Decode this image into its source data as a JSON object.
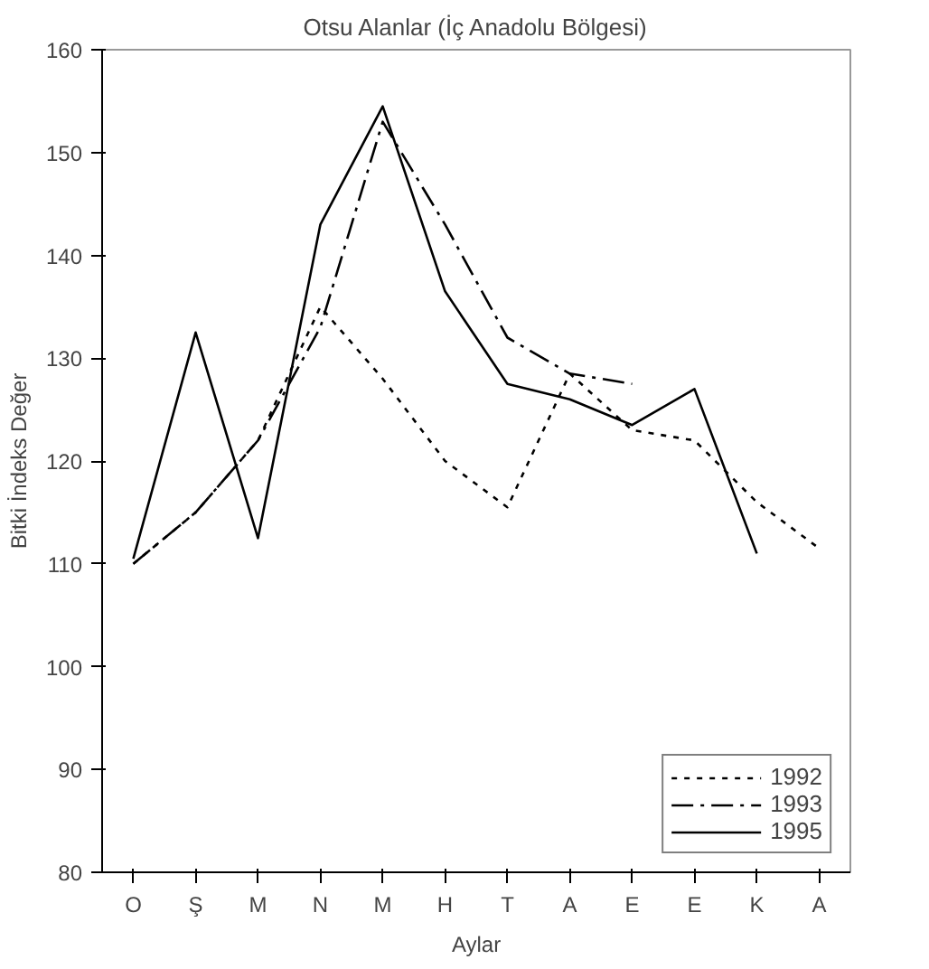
{
  "chart_data": {
    "type": "line",
    "title": "Otsu Alanlar (İç Anadolu Bölgesi)",
    "xlabel": "Aylar",
    "ylabel": "Bitki İndeks Değer",
    "categories": [
      "O",
      "Ş",
      "M",
      "N",
      "M",
      "H",
      "T",
      "A",
      "E",
      "E",
      "K",
      "A"
    ],
    "series": [
      {
        "name": "1992",
        "color": "#000000",
        "line_style": "dotted",
        "values": [
          110,
          115,
          122,
          135,
          128,
          120,
          115.5,
          128.5,
          123,
          122,
          116,
          111.5
        ]
      },
      {
        "name": "1993",
        "color": "#000000",
        "line_style": "dashed",
        "values": [
          110,
          115,
          122,
          133,
          153,
          143,
          132,
          128.5,
          127.5,
          null,
          null,
          null
        ]
      },
      {
        "name": "1995",
        "color": "#000000",
        "line_style": "solid",
        "values": [
          110.5,
          132.5,
          112.5,
          143,
          154.5,
          136.5,
          127.5,
          126,
          123.5,
          127,
          111,
          null
        ]
      }
    ],
    "ylim": [
      80,
      160
    ],
    "yticks": [
      80,
      90,
      100,
      110,
      120,
      130,
      140,
      150,
      160
    ],
    "grid": false,
    "legend": "bottom right"
  }
}
